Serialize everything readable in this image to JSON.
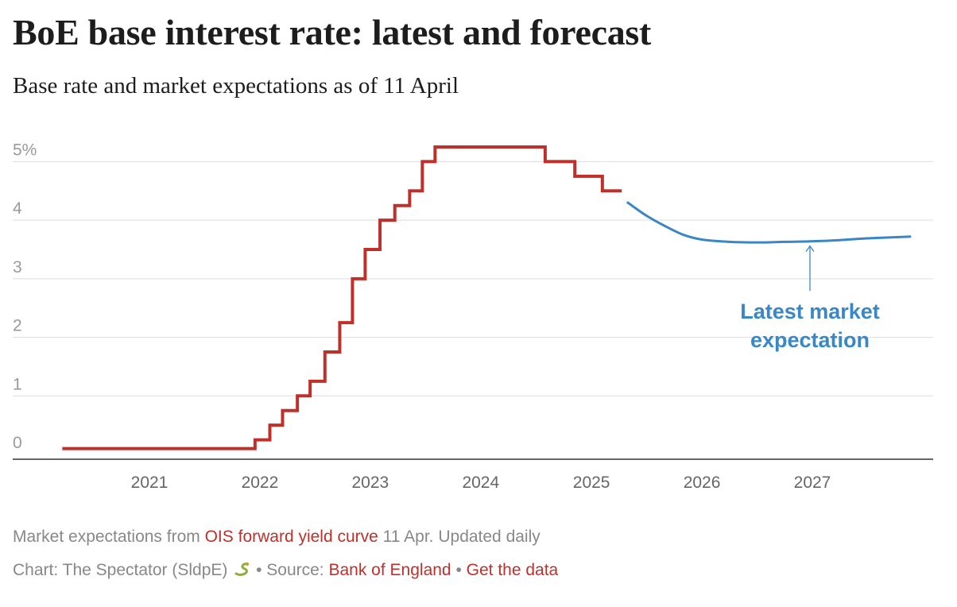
{
  "header": {
    "title": "BoE base interest rate: latest and forecast",
    "subtitle": "Base rate and market expectations as of 11 April"
  },
  "footer": {
    "note_prefix": "Market expectations from ",
    "note_link": "OIS forward yield curve",
    "note_suffix": " 11 Apr. Updated daily",
    "credit_prefix": "Chart: The Spectator (SldpE) ",
    "credit_source_label": " • Source: ",
    "credit_source_link": "Bank of England",
    "credit_sep": " • ",
    "credit_data_link": "Get the data",
    "credit_icon": "snake-icon"
  },
  "colors": {
    "base_rate": "#c0302b",
    "forecast": "#3a87c8",
    "axis_text": "#9a9a9a",
    "grid": "#dddddd",
    "link": "#c0302b"
  },
  "chart_data": {
    "type": "line",
    "x_axis": {
      "ticks": [
        "2021",
        "2022",
        "2023",
        "2024",
        "2025",
        "2026",
        "2027"
      ],
      "range": [
        "2020-03-01",
        "2027-12-01"
      ]
    },
    "y_axis": {
      "ticks": [
        "0",
        "1",
        "2",
        "3",
        "4",
        "5%"
      ],
      "range": [
        0,
        5.25
      ]
    },
    "grid": true,
    "series": [
      {
        "kind": "step",
        "points": [
          {
            "x": "2020-03-19",
            "y": 0.1
          },
          {
            "x": "2021-12-16",
            "y": 0.25
          },
          {
            "x": "2022-02-03",
            "y": 0.5
          },
          {
            "x": "2022-03-17",
            "y": 0.75
          },
          {
            "x": "2022-05-05",
            "y": 1.0
          },
          {
            "x": "2022-06-16",
            "y": 1.25
          },
          {
            "x": "2022-08-04",
            "y": 1.75
          },
          {
            "x": "2022-09-22",
            "y": 2.25
          },
          {
            "x": "2022-11-03",
            "y": 3.0
          },
          {
            "x": "2022-12-15",
            "y": 3.5
          },
          {
            "x": "2023-02-02",
            "y": 4.0
          },
          {
            "x": "2023-03-23",
            "y": 4.25
          },
          {
            "x": "2023-05-11",
            "y": 4.5
          },
          {
            "x": "2023-06-22",
            "y": 5.0
          },
          {
            "x": "2023-08-03",
            "y": 5.25
          },
          {
            "x": "2024-08-01",
            "y": 5.0
          },
          {
            "x": "2024-11-07",
            "y": 4.75
          },
          {
            "x": "2025-02-06",
            "y": 4.5
          },
          {
            "x": "2025-04-11",
            "y": 4.5
          }
        ]
      },
      {
        "kind": "smooth",
        "points": [
          {
            "x": "2025-05-01",
            "y": 4.3
          },
          {
            "x": "2025-07-01",
            "y": 4.08
          },
          {
            "x": "2025-09-01",
            "y": 3.9
          },
          {
            "x": "2025-11-01",
            "y": 3.75
          },
          {
            "x": "2026-01-01",
            "y": 3.67
          },
          {
            "x": "2026-04-01",
            "y": 3.63
          },
          {
            "x": "2026-07-01",
            "y": 3.62
          },
          {
            "x": "2026-10-01",
            "y": 3.63
          },
          {
            "x": "2027-01-01",
            "y": 3.64
          },
          {
            "x": "2027-04-01",
            "y": 3.66
          },
          {
            "x": "2027-07-01",
            "y": 3.69
          },
          {
            "x": "2027-11-20",
            "y": 3.72
          }
        ]
      }
    ],
    "annotation": {
      "lines": [
        "Latest market",
        "expectation"
      ],
      "x": "2027-01-01",
      "y": 3.64
    }
  }
}
